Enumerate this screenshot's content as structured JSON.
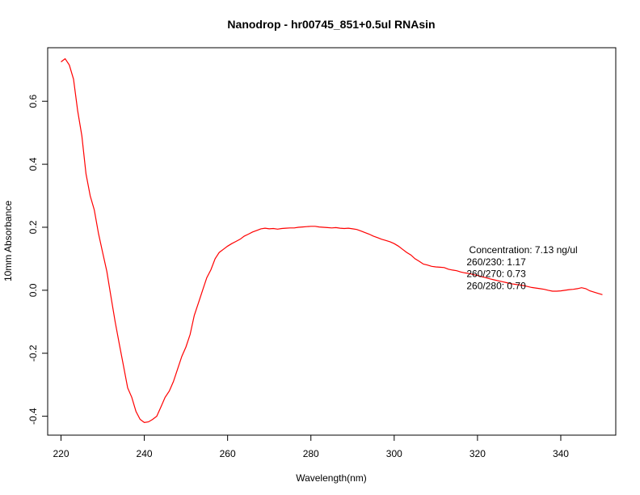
{
  "chart_data": {
    "type": "line",
    "title": "Nanodrop - hr00745_851+0.5ul RNAsin",
    "xlabel": "Wavelength(nm)",
    "ylabel": "10mm Absorbance",
    "xlim": [
      216.8,
      353.2
    ],
    "ylim": [
      -0.46,
      0.77
    ],
    "x_ticks": [
      "220",
      "240",
      "260",
      "280",
      "300",
      "320",
      "340"
    ],
    "y_ticks": [
      "-0.4",
      "-0.2",
      "0.0",
      "0.2",
      "0.4",
      "0.6"
    ],
    "grid": false,
    "series": [
      {
        "color": "#ff0000",
        "x": [
          220,
          221,
          222,
          223,
          224,
          225,
          226,
          227,
          228,
          229,
          230,
          231,
          232,
          233,
          234,
          235,
          236,
          237,
          238,
          239,
          240,
          241,
          242,
          243,
          244,
          245,
          246,
          247,
          248,
          249,
          250,
          251,
          252,
          253,
          254,
          255,
          256,
          257,
          258,
          259,
          260,
          261,
          262,
          263,
          264,
          265,
          266,
          267,
          268,
          269,
          270,
          271,
          272,
          273,
          274,
          275,
          276,
          277,
          278,
          279,
          280,
          281,
          282,
          283,
          284,
          285,
          286,
          287,
          288,
          289,
          290,
          291,
          292,
          293,
          294,
          295,
          296,
          297,
          298,
          299,
          300,
          301,
          302,
          303,
          304,
          305,
          306,
          307,
          308,
          309,
          310,
          311,
          312,
          313,
          314,
          315,
          316,
          317,
          318,
          319,
          320,
          321,
          322,
          323,
          324,
          325,
          326,
          327,
          328,
          329,
          330,
          331,
          332,
          333,
          334,
          335,
          336,
          337,
          338,
          339,
          340,
          341,
          342,
          343,
          344,
          345,
          346,
          347,
          348,
          349,
          350
        ],
        "y": [
          0.725,
          0.735,
          0.715,
          0.67,
          0.57,
          0.49,
          0.37,
          0.3,
          0.255,
          0.18,
          0.12,
          0.06,
          -0.02,
          -0.1,
          -0.17,
          -0.24,
          -0.31,
          -0.34,
          -0.385,
          -0.41,
          -0.42,
          -0.418,
          -0.41,
          -0.4,
          -0.37,
          -0.34,
          -0.32,
          -0.29,
          -0.25,
          -0.21,
          -0.18,
          -0.14,
          -0.08,
          -0.04,
          0.0,
          0.04,
          0.065,
          0.1,
          0.12,
          0.13,
          0.14,
          0.148,
          0.155,
          0.162,
          0.172,
          0.178,
          0.185,
          0.19,
          0.195,
          0.197,
          0.195,
          0.196,
          0.194,
          0.196,
          0.197,
          0.198,
          0.198,
          0.2,
          0.201,
          0.202,
          0.203,
          0.203,
          0.201,
          0.2,
          0.199,
          0.198,
          0.199,
          0.197,
          0.196,
          0.197,
          0.195,
          0.193,
          0.188,
          0.183,
          0.178,
          0.172,
          0.167,
          0.162,
          0.158,
          0.154,
          0.148,
          0.14,
          0.13,
          0.12,
          0.112,
          0.1,
          0.092,
          0.083,
          0.08,
          0.076,
          0.074,
          0.073,
          0.072,
          0.067,
          0.064,
          0.062,
          0.058,
          0.055,
          0.053,
          0.05,
          0.047,
          0.043,
          0.04,
          0.036,
          0.033,
          0.03,
          0.027,
          0.024,
          0.021,
          0.019,
          0.017,
          0.015,
          0.012,
          0.009,
          0.007,
          0.005,
          0.003,
          0.0,
          -0.003,
          -0.003,
          -0.002,
          0.0,
          0.002,
          0.003,
          0.005,
          0.008,
          0.005,
          -0.002,
          -0.006,
          -0.01,
          -0.014
        ]
      }
    ],
    "annotations": [
      {
        "text": "Concentration: 7.13 ng/ul",
        "x": 331,
        "y": 0.128
      },
      {
        "text": "260/230: 1.17",
        "x": 324.5,
        "y": 0.09
      },
      {
        "text": "260/270: 0.73",
        "x": 324.5,
        "y": 0.052
      },
      {
        "text": "260/280: 0.70",
        "x": 324.5,
        "y": 0.014
      }
    ]
  }
}
